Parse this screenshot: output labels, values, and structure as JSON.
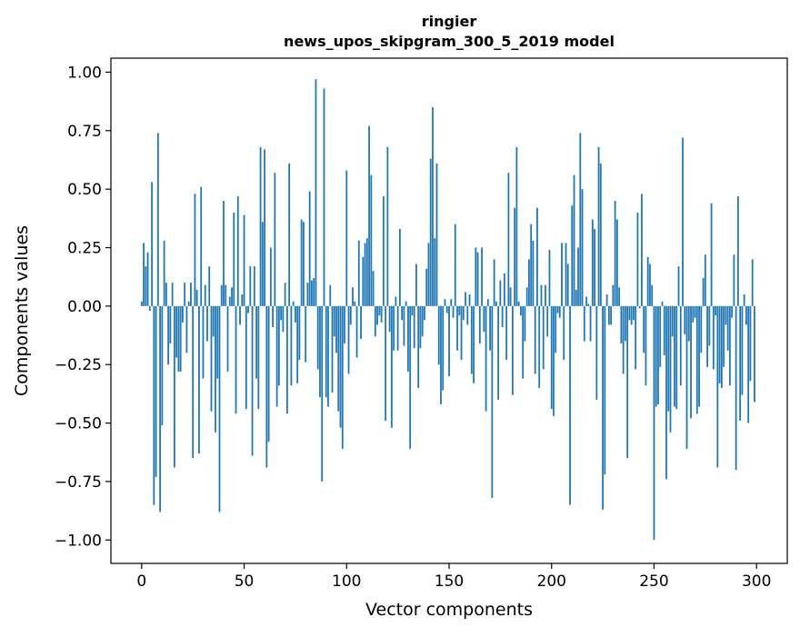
{
  "chart_data": {
    "type": "bar",
    "title_line1": "ringier",
    "title_line2": "news_upos_skipgram_300_5_2019 model",
    "xlabel": "Vector components",
    "ylabel": "Components values",
    "xlim": [
      -15,
      315
    ],
    "ylim": [
      -1.1,
      1.06
    ],
    "x_ticks": [
      {
        "value": 0,
        "label": "0"
      },
      {
        "value": 50,
        "label": "50"
      },
      {
        "value": 100,
        "label": "100"
      },
      {
        "value": 150,
        "label": "150"
      },
      {
        "value": 200,
        "label": "200"
      },
      {
        "value": 250,
        "label": "250"
      },
      {
        "value": 300,
        "label": "300"
      }
    ],
    "y_ticks": [
      {
        "value": 1.0,
        "label": "1.00"
      },
      {
        "value": 0.75,
        "label": "0.75"
      },
      {
        "value": 0.5,
        "label": "0.50"
      },
      {
        "value": 0.25,
        "label": "0.25"
      },
      {
        "value": 0.0,
        "label": "0.00"
      },
      {
        "value": -0.25,
        "label": "−0.25"
      },
      {
        "value": -0.5,
        "label": "−0.50"
      },
      {
        "value": -0.75,
        "label": "−0.75"
      },
      {
        "value": -1.0,
        "label": "−1.00"
      }
    ],
    "bar_color": "#1f77b4",
    "values": [
      0.02,
      0.27,
      0.17,
      0.23,
      -0.02,
      0.53,
      -0.85,
      -0.73,
      0.74,
      -0.88,
      -0.51,
      0.28,
      0.1,
      -0.25,
      -0.16,
      0.1,
      -0.69,
      -0.22,
      -0.28,
      -0.28,
      -0.07,
      0.1,
      -0.2,
      0.02,
      0.1,
      -0.65,
      0.48,
      0.07,
      -0.63,
      0.51,
      -0.31,
      0.09,
      -0.15,
      0.17,
      -0.45,
      -0.13,
      -0.54,
      -0.31,
      -0.88,
      0.09,
      0.45,
      0.09,
      -0.28,
      0.04,
      0.08,
      0.4,
      -0.46,
      0.47,
      -0.08,
      0.05,
      0.39,
      -0.44,
      -0.03,
      0.17,
      -0.64,
      0.17,
      -0.31,
      -0.44,
      0.68,
      0.36,
      0.67,
      -0.69,
      -0.58,
      0.25,
      -0.09,
      0.57,
      -0.43,
      -0.34,
      -0.06,
      -0.11,
      0.1,
      -0.46,
      0.61,
      -0.34,
      0.02,
      -0.07,
      -0.33,
      -0.23,
      0.37,
      0.36,
      -0.24,
      0.1,
      0.49,
      0.11,
      0.12,
      0.97,
      -0.27,
      -0.39,
      -0.75,
      0.93,
      -0.39,
      -0.43,
      0.09,
      -0.37,
      -0.13,
      -0.2,
      -0.45,
      -0.52,
      -0.61,
      -0.16,
      0.58,
      -0.29,
      -0.08,
      0.08,
      0.02,
      -0.22,
      0.28,
      -0.14,
      0.21,
      0.27,
      0.29,
      0.77,
      0.56,
      0.15,
      -0.13,
      -0.08,
      -0.04,
      -0.07,
      0.47,
      -0.49,
      0.68,
      -0.11,
      -0.52,
      -0.19,
      0.04,
      -0.19,
      0.33,
      -0.06,
      -0.17,
      0.02,
      -0.28,
      -0.61,
      -0.04,
      -0.18,
      0.18,
      -0.35,
      -0.18,
      -0.13,
      -0.06,
      0.16,
      0.27,
      0.63,
      0.85,
      0.29,
      0.61,
      -0.25,
      -0.42,
      -0.36,
      0.03,
      -0.03,
      -0.3,
      0.03,
      -0.05,
      0.35,
      -0.19,
      -0.04,
      -0.23,
      -0.06,
      0.06,
      -0.08,
      0.05,
      -0.29,
      -0.33,
      0.25,
      0.23,
      -0.16,
      0.25,
      -0.11,
      -0.45,
      0.03,
      -0.19,
      -0.82,
      0.2,
      0.02,
      -0.4,
      0.11,
      -0.09,
      0.14,
      -0.23,
      0.57,
      0.08,
      -0.38,
      0.42,
      0.68,
      0.02,
      -0.04,
      -0.31,
      -0.15,
      0.08,
      0.2,
      0.35,
      0.28,
      -0.29,
      0.42,
      -0.35,
      0.09,
      -0.27,
      0.09,
      -0.13,
      0.24,
      -0.44,
      -0.47,
      -0.2,
      -0.03,
      -0.05,
      0.27,
      -0.23,
      0.27,
      0.18,
      -0.85,
      0.43,
      0.56,
      0.07,
      0.25,
      0.74,
      0.5,
      -0.15,
      0.04,
      0.01,
      -0.15,
      0.37,
      0.33,
      -0.4,
      0.68,
      0.61,
      -0.87,
      -0.72,
      0.05,
      -0.08,
      -0.08,
      0.09,
      0.45,
      0.37,
      0.08,
      -0.16,
      -0.29,
      -0.15,
      -0.65,
      -0.06,
      -0.08,
      -0.06,
      -0.27,
      0.4,
      -0.01,
      0.48,
      -0.2,
      -0.34,
      0.21,
      0.18,
      0.09,
      -1.0,
      -0.43,
      -0.42,
      -0.26,
      0.02,
      -0.21,
      -0.74,
      -0.45,
      -0.54,
      -0.13,
      -0.43,
      -0.44,
      0.17,
      -0.34,
      0.72,
      -0.12,
      -0.61,
      -0.15,
      -0.48,
      -0.07,
      -0.05,
      -0.46,
      -0.43,
      -0.2,
      0.12,
      0.22,
      -0.26,
      -0.17,
      0.44,
      -0.27,
      -0.04,
      -0.69,
      -0.33,
      -0.35,
      -0.26,
      -0.08,
      -0.19,
      -0.34,
      -0.05,
      0.22,
      -0.7,
      0.47,
      -0.49,
      -0.38,
      0.05,
      -0.08,
      -0.5,
      -0.32,
      0.2,
      -0.41
    ]
  }
}
